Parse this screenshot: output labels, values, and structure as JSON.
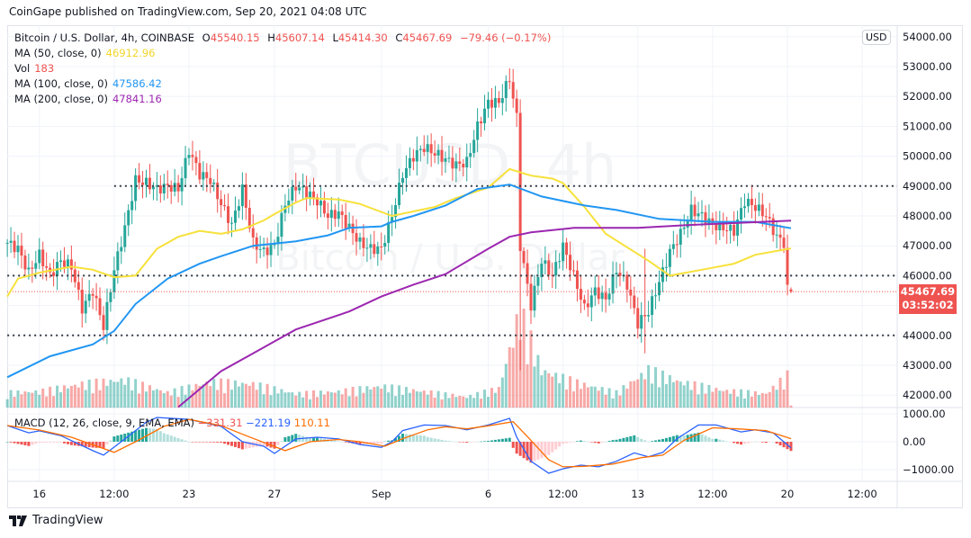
{
  "header": {
    "published": "CoinGape published on TradingView.com, Sep 20, 2021 04:08 UTC"
  },
  "legend": {
    "symbol": "Bitcoin / U.S. Dollar, 4h, COINBASE",
    "open_label": "O",
    "open": "45540.15",
    "high_label": "H",
    "high": "45607.14",
    "low_label": "L",
    "low": "45414.30",
    "close_label": "C",
    "close": "45467.69",
    "change": "−79.46 (−0.17%)",
    "ma50_label": "MA (50, close, 0)",
    "ma50_value": "46912.96",
    "vol_label": "Vol",
    "vol_value": "183",
    "ma100_label": "MA (100, close, 0)",
    "ma100_value": "47586.42",
    "ma200_label": "MA (200, close, 0)",
    "ma200_value": "47841.16",
    "macd_label": "MACD (12, 26, close, 9, EMA, EMA)",
    "macd_hist": "−331.31",
    "macd_value": "−221.19",
    "macd_signal": "110.11"
  },
  "watermark": {
    "line1": "BTCUSD, 4h",
    "line2": "Bitcoin / U.S. Dollar"
  },
  "price_axis": {
    "currency": "USD",
    "ticks": [
      "54000.00",
      "53000.00",
      "52000.00",
      "51000.00",
      "50000.00",
      "49000.00",
      "48000.00",
      "47000.00",
      "46000.00",
      "44000.00",
      "43000.00",
      "42000.00"
    ],
    "last_price": "45467.69",
    "countdown": "03:52:02"
  },
  "macd_axis": {
    "ticks": [
      "1000.00",
      "0.00",
      "−1000.00"
    ]
  },
  "time_axis": {
    "ticks": [
      {
        "label": "16",
        "t": "2021-08-16T00:00"
      },
      {
        "label": "12:00",
        "t": "2021-08-19T12:00"
      },
      {
        "label": "23",
        "t": "2021-08-23T00:00"
      },
      {
        "label": "27",
        "t": "2021-08-27T00:00"
      },
      {
        "label": "Sep",
        "t": "2021-09-01T00:00"
      },
      {
        "label": "6",
        "t": "2021-09-06T00:00"
      },
      {
        "label": "12:00",
        "t": "2021-09-09T12:00"
      },
      {
        "label": "13",
        "t": "2021-09-13T00:00"
      },
      {
        "label": "12:00",
        "t": "2021-09-16T12:00"
      },
      {
        "label": "20",
        "t": "2021-09-20T00:00"
      },
      {
        "label": "12:00",
        "t": "2021-09-23T12:00"
      }
    ]
  },
  "footer": {
    "brand": "TradingView"
  },
  "colors": {
    "up": "#26a69a",
    "down": "#ef5350",
    "ma50": "#f7e13b",
    "ma100": "#2196f3",
    "ma200": "#9c27b0",
    "macd": "#2962ff",
    "signal": "#ff6d00"
  },
  "chart_data": {
    "type": "candlestick",
    "interval": "4h",
    "ylim": [
      41700,
      54300
    ],
    "macd_ylim": [
      -1400,
      1100
    ],
    "last_bar": {
      "open": 45540.15,
      "high": 45607.14,
      "low": 45414.3,
      "close": 45467.69,
      "volume": 183
    },
    "horizontal_levels": [
      {
        "price": 49000,
        "from": "2021-08-19T12:00"
      },
      {
        "price": 46000,
        "from": "2021-08-14T12:00"
      },
      {
        "price": 44000,
        "from": "2021-08-14T12:00"
      }
    ],
    "close_path": [
      [
        "2021-08-14T12:00",
        47100
      ],
      [
        "2021-08-15T00:00",
        46900
      ],
      [
        "2021-08-15T12:00",
        46100
      ],
      [
        "2021-08-16T00:00",
        46700
      ],
      [
        "2021-08-16T12:00",
        46000
      ],
      [
        "2021-08-17T00:00",
        46500
      ],
      [
        "2021-08-17T12:00",
        46300
      ],
      [
        "2021-08-18T00:00",
        44900
      ],
      [
        "2021-08-18T12:00",
        45500
      ],
      [
        "2021-08-19T00:00",
        44300
      ],
      [
        "2021-08-19T12:00",
        46200
      ],
      [
        "2021-08-20T00:00",
        47600
      ],
      [
        "2021-08-20T12:00",
        49200
      ],
      [
        "2021-08-21T00:00",
        49100
      ],
      [
        "2021-08-21T12:00",
        48900
      ],
      [
        "2021-08-22T00:00",
        49000
      ],
      [
        "2021-08-22T12:00",
        48900
      ],
      [
        "2021-08-23T00:00",
        50200
      ],
      [
        "2021-08-23T12:00",
        49400
      ],
      [
        "2021-08-24T00:00",
        49200
      ],
      [
        "2021-08-24T12:00",
        48400
      ],
      [
        "2021-08-25T00:00",
        47700
      ],
      [
        "2021-08-25T12:00",
        48900
      ],
      [
        "2021-08-26T00:00",
        47100
      ],
      [
        "2021-08-26T12:00",
        46800
      ],
      [
        "2021-08-27T00:00",
        47000
      ],
      [
        "2021-08-27T12:00",
        48400
      ],
      [
        "2021-08-28T00:00",
        49000
      ],
      [
        "2021-08-28T12:00",
        48800
      ],
      [
        "2021-08-29T00:00",
        48500
      ],
      [
        "2021-08-29T12:00",
        48000
      ],
      [
        "2021-08-30T00:00",
        48100
      ],
      [
        "2021-08-30T12:00",
        47600
      ],
      [
        "2021-08-31T00:00",
        47100
      ],
      [
        "2021-08-31T12:00",
        46900
      ],
      [
        "2021-09-01T00:00",
        46900
      ],
      [
        "2021-09-01T12:00",
        48000
      ],
      [
        "2021-09-02T00:00",
        49400
      ],
      [
        "2021-09-02T12:00",
        50000
      ],
      [
        "2021-09-03T00:00",
        50300
      ],
      [
        "2021-09-03T12:00",
        50100
      ],
      [
        "2021-09-04T00:00",
        49900
      ],
      [
        "2021-09-04T12:00",
        49700
      ],
      [
        "2021-09-05T00:00",
        49800
      ],
      [
        "2021-09-05T12:00",
        51000
      ],
      [
        "2021-09-06T00:00",
        51800
      ],
      [
        "2021-09-06T12:00",
        51800
      ],
      [
        "2021-09-07T00:00",
        52600
      ],
      [
        "2021-09-07T08:00",
        51300
      ],
      [
        "2021-09-07T12:00",
        47000
      ],
      [
        "2021-09-08T00:00",
        45000
      ],
      [
        "2021-09-08T12:00",
        46500
      ],
      [
        "2021-09-09T00:00",
        46000
      ],
      [
        "2021-09-09T12:00",
        47000
      ],
      [
        "2021-09-10T00:00",
        46000
      ],
      [
        "2021-09-10T12:00",
        44900
      ],
      [
        "2021-09-11T00:00",
        45500
      ],
      [
        "2021-09-11T12:00",
        45200
      ],
      [
        "2021-09-12T00:00",
        46200
      ],
      [
        "2021-09-12T12:00",
        45700
      ],
      [
        "2021-09-13T00:00",
        44400
      ],
      [
        "2021-09-13T12:00",
        44800
      ],
      [
        "2021-09-14T00:00",
        45800
      ],
      [
        "2021-09-14T12:00",
        46800
      ],
      [
        "2021-09-15T00:00",
        47400
      ],
      [
        "2021-09-15T12:00",
        48200
      ],
      [
        "2021-09-16T00:00",
        48000
      ],
      [
        "2021-09-16T12:00",
        47700
      ],
      [
        "2021-09-17T00:00",
        47600
      ],
      [
        "2021-09-17T12:00",
        47500
      ],
      [
        "2021-09-18T00:00",
        48500
      ],
      [
        "2021-09-18T12:00",
        48300
      ],
      [
        "2021-09-19T00:00",
        48000
      ],
      [
        "2021-09-19T12:00",
        47300
      ],
      [
        "2021-09-19T20:00",
        47100
      ],
      [
        "2021-09-20T00:00",
        45540.15
      ]
    ],
    "volume_path": [
      [
        "2021-08-14T12:00",
        1400
      ],
      [
        "2021-08-16T00:00",
        1500
      ],
      [
        "2021-08-18T00:00",
        2200
      ],
      [
        "2021-08-20T00:00",
        2600
      ],
      [
        "2021-08-22T00:00",
        1400
      ],
      [
        "2021-08-24T00:00",
        2400
      ],
      [
        "2021-08-26T00:00",
        2200
      ],
      [
        "2021-08-28T00:00",
        1300
      ],
      [
        "2021-08-30T00:00",
        1500
      ],
      [
        "2021-09-01T00:00",
        2000
      ],
      [
        "2021-09-03T00:00",
        1500
      ],
      [
        "2021-09-05T00:00",
        1000
      ],
      [
        "2021-09-06T12:00",
        1800
      ],
      [
        "2021-09-07T12:00",
        9000
      ],
      [
        "2021-09-08T12:00",
        3500
      ],
      [
        "2021-09-10T00:00",
        2400
      ],
      [
        "2021-09-12T00:00",
        1400
      ],
      [
        "2021-09-13T12:00",
        3500
      ],
      [
        "2021-09-15T00:00",
        2400
      ],
      [
        "2021-09-17T00:00",
        1600
      ],
      [
        "2021-09-19T00:00",
        1300
      ],
      [
        "2021-09-20T00:00",
        3000
      ]
    ],
    "series": [
      {
        "name": "MA (50, close, 0)",
        "color": "ma50",
        "points": [
          [
            "2021-08-14T12:00",
            45300
          ],
          [
            "2021-08-15T00:00",
            45900
          ],
          [
            "2021-08-16T00:00",
            46100
          ],
          [
            "2021-08-17T12:00",
            46300
          ],
          [
            "2021-08-18T12:00",
            46200
          ],
          [
            "2021-08-19T12:00",
            45950
          ],
          [
            "2021-08-20T12:00",
            46000
          ],
          [
            "2021-08-21T12:00",
            46900
          ],
          [
            "2021-08-22T12:00",
            47300
          ],
          [
            "2021-08-23T12:00",
            47500
          ],
          [
            "2021-08-24T12:00",
            47400
          ],
          [
            "2021-08-25T12:00",
            47550
          ],
          [
            "2021-08-26T12:00",
            47850
          ],
          [
            "2021-08-27T00:00",
            48060
          ],
          [
            "2021-08-28T00:00",
            48450
          ],
          [
            "2021-08-28T12:00",
            48600
          ],
          [
            "2021-08-30T00:00",
            48550
          ],
          [
            "2021-08-31T00:00",
            48400
          ],
          [
            "2021-09-01T12:00",
            48000
          ],
          [
            "2021-09-02T12:00",
            48150
          ],
          [
            "2021-09-03T12:00",
            48300
          ],
          [
            "2021-09-04T12:00",
            48600
          ],
          [
            "2021-09-06T00:00",
            48950
          ],
          [
            "2021-09-07T00:00",
            49570
          ],
          [
            "2021-09-08T00:00",
            49350
          ],
          [
            "2021-09-09T00:00",
            49250
          ],
          [
            "2021-09-09T12:00",
            49100
          ],
          [
            "2021-09-10T12:00",
            48300
          ],
          [
            "2021-09-11T12:00",
            47400
          ],
          [
            "2021-09-13T12:00",
            46500
          ],
          [
            "2021-09-14T12:00",
            46000
          ],
          [
            "2021-09-16T00:00",
            46200
          ],
          [
            "2021-09-17T12:00",
            46400
          ],
          [
            "2021-09-18T12:00",
            46700
          ],
          [
            "2021-09-20T04:00",
            46912.96
          ]
        ]
      },
      {
        "name": "MA (100, close, 0)",
        "color": "ma100",
        "points": [
          [
            "2021-08-14T12:00",
            42600
          ],
          [
            "2021-08-16T12:00",
            43300
          ],
          [
            "2021-08-18T12:00",
            43700
          ],
          [
            "2021-08-19T12:00",
            44150
          ],
          [
            "2021-08-20T12:00",
            45050
          ],
          [
            "2021-08-22T00:00",
            45900
          ],
          [
            "2021-08-23T12:00",
            46400
          ],
          [
            "2021-08-24T12:00",
            46650
          ],
          [
            "2021-08-26T00:00",
            47000
          ],
          [
            "2021-08-28T00:00",
            47150
          ],
          [
            "2021-08-29T12:00",
            47350
          ],
          [
            "2021-08-30T12:00",
            47600
          ],
          [
            "2021-09-01T00:00",
            47650
          ],
          [
            "2021-09-01T12:00",
            47800
          ],
          [
            "2021-09-02T12:00",
            48000
          ],
          [
            "2021-09-04T00:00",
            48350
          ],
          [
            "2021-09-05T12:00",
            48900
          ],
          [
            "2021-09-07T00:00",
            49050
          ],
          [
            "2021-09-08T12:00",
            48650
          ],
          [
            "2021-09-10T12:00",
            48350
          ],
          [
            "2021-09-12T00:00",
            48200
          ],
          [
            "2021-09-14T00:00",
            47900
          ],
          [
            "2021-09-16T12:00",
            47800
          ],
          [
            "2021-09-18T12:00",
            47800
          ],
          [
            "2021-09-20T04:00",
            47586.42
          ]
        ]
      },
      {
        "name": "MA (200, close, 0)",
        "color": "ma200",
        "points": [
          [
            "2021-08-22T12:00",
            41600
          ],
          [
            "2021-08-24T12:00",
            42800
          ],
          [
            "2021-08-26T00:00",
            43400
          ],
          [
            "2021-08-28T00:00",
            44200
          ],
          [
            "2021-08-30T12:00",
            44800
          ],
          [
            "2021-09-01T00:00",
            45300
          ],
          [
            "2021-09-02T12:00",
            45700
          ],
          [
            "2021-09-04T00:00",
            46050
          ],
          [
            "2021-09-06T00:00",
            46900
          ],
          [
            "2021-09-07T00:00",
            47300
          ],
          [
            "2021-09-08T00:00",
            47450
          ],
          [
            "2021-09-10T00:00",
            47600
          ],
          [
            "2021-09-13T00:00",
            47600
          ],
          [
            "2021-09-15T12:00",
            47700
          ],
          [
            "2021-09-20T04:00",
            47841.16
          ]
        ]
      }
    ],
    "macd": {
      "macd_line": [
        [
          "2021-08-14T12:00",
          580
        ],
        [
          "2021-08-15T12:00",
          320
        ],
        [
          "2021-08-16T00:00",
          390
        ],
        [
          "2021-08-17T00:00",
          220
        ],
        [
          "2021-08-18T12:00",
          -320
        ],
        [
          "2021-08-19T00:00",
          -480
        ],
        [
          "2021-08-20T00:00",
          100
        ],
        [
          "2021-08-21T00:00",
          700
        ],
        [
          "2021-08-21T12:00",
          870
        ],
        [
          "2021-08-23T00:00",
          800
        ],
        [
          "2021-08-24T12:00",
          550
        ],
        [
          "2021-08-25T12:00",
          0
        ],
        [
          "2021-08-26T12:00",
          -160
        ],
        [
          "2021-08-27T00:00",
          -420
        ],
        [
          "2021-08-28T00:00",
          100
        ],
        [
          "2021-08-29T00:00",
          160
        ],
        [
          "2021-08-30T00:00",
          100
        ],
        [
          "2021-08-31T00:00",
          -100
        ],
        [
          "2021-09-01T00:00",
          -200
        ],
        [
          "2021-09-01T12:00",
          0
        ],
        [
          "2021-09-02T00:00",
          400
        ],
        [
          "2021-09-03T00:00",
          600
        ],
        [
          "2021-09-04T00:00",
          580
        ],
        [
          "2021-09-05T00:00",
          430
        ],
        [
          "2021-09-06T00:00",
          600
        ],
        [
          "2021-09-07T00:00",
          840
        ],
        [
          "2021-09-07T08:00",
          160
        ],
        [
          "2021-09-08T00:00",
          -700
        ],
        [
          "2021-09-08T20:00",
          -1130
        ],
        [
          "2021-09-09T12:00",
          -970
        ],
        [
          "2021-09-10T08:00",
          -840
        ],
        [
          "2021-09-11T04:00",
          -900
        ],
        [
          "2021-09-12T00:00",
          -700
        ],
        [
          "2021-09-12T20:00",
          -400
        ],
        [
          "2021-09-13T12:00",
          -540
        ],
        [
          "2021-09-14T04:00",
          -380
        ],
        [
          "2021-09-14T20:00",
          110
        ],
        [
          "2021-09-15T20:00",
          600
        ],
        [
          "2021-09-16T16:00",
          600
        ],
        [
          "2021-09-17T20:00",
          350
        ],
        [
          "2021-09-18T12:00",
          430
        ],
        [
          "2021-09-19T08:00",
          320
        ],
        [
          "2021-09-20T04:00",
          -221.19
        ]
      ],
      "signal_line": [
        [
          "2021-08-14T12:00",
          580
        ],
        [
          "2021-08-16T00:00",
          420
        ],
        [
          "2021-08-17T12:00",
          160
        ],
        [
          "2021-08-19T12:00",
          -380
        ],
        [
          "2021-08-20T12:00",
          0
        ],
        [
          "2021-08-21T20:00",
          550
        ],
        [
          "2021-08-23T00:00",
          800
        ],
        [
          "2021-08-24T12:00",
          580
        ],
        [
          "2021-08-25T16:00",
          220
        ],
        [
          "2021-08-27T12:00",
          -320
        ],
        [
          "2021-08-28T16:00",
          0
        ],
        [
          "2021-08-30T00:00",
          80
        ],
        [
          "2021-08-31T00:00",
          0
        ],
        [
          "2021-09-01T04:00",
          -160
        ],
        [
          "2021-09-02T00:00",
          110
        ],
        [
          "2021-09-03T04:00",
          430
        ],
        [
          "2021-09-04T00:00",
          540
        ],
        [
          "2021-09-05T00:00",
          460
        ],
        [
          "2021-09-06T00:00",
          570
        ],
        [
          "2021-09-07T04:00",
          720
        ],
        [
          "2021-09-08T00:00",
          50
        ],
        [
          "2021-09-08T20:00",
          -650
        ],
        [
          "2021-09-09T12:00",
          -900
        ],
        [
          "2021-09-10T12:00",
          -880
        ],
        [
          "2021-09-11T20:00",
          -800
        ],
        [
          "2021-09-13T04:00",
          -570
        ],
        [
          "2021-09-14T04:00",
          -480
        ],
        [
          "2021-09-15T04:00",
          50
        ],
        [
          "2021-09-16T12:00",
          500
        ],
        [
          "2021-09-17T16:00",
          460
        ],
        [
          "2021-09-19T00:00",
          400
        ],
        [
          "2021-09-20T04:00",
          110.11
        ]
      ]
    }
  }
}
